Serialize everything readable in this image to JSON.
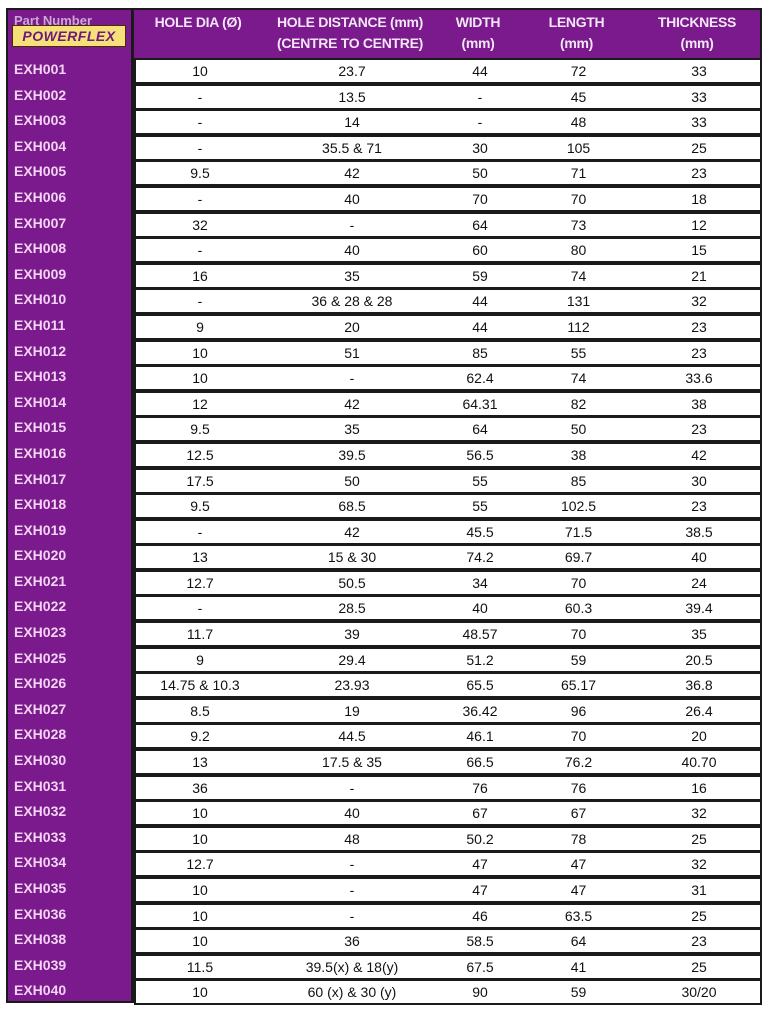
{
  "header": {
    "part_number": "Part Number",
    "brand": "POWERFLEX",
    "hole_dia": "HOLE DIA (Ø)",
    "hole_distance_1": "HOLE DISTANCE (mm)",
    "hole_distance_2": "(CENTRE TO CENTRE)",
    "width_1": "WIDTH",
    "width_2": "(mm)",
    "length_1": "LENGTH",
    "length_2": "(mm)",
    "thickness_1": "THICKNESS",
    "thickness_2": "(mm)"
  },
  "colors": {
    "header_bg": "#7a1a8c",
    "part_text": "#f4d4f4",
    "cell_bg": "#ffffff"
  },
  "rows": [
    [
      "EXH001",
      "10",
      "23.7",
      "44",
      "72",
      "33"
    ],
    [
      "EXH002",
      "-",
      "13.5",
      "-",
      "45",
      "33"
    ],
    [
      "EXH003",
      "-",
      "14",
      "-",
      "48",
      "33"
    ],
    [
      "EXH004",
      "-",
      "35.5 & 71",
      "30",
      "105",
      "25"
    ],
    [
      "EXH005",
      "9.5",
      "42",
      "50",
      "71",
      "23"
    ],
    [
      "EXH006",
      "-",
      "40",
      "70",
      "70",
      "18"
    ],
    [
      "EXH007",
      "32",
      "-",
      "64",
      "73",
      "12"
    ],
    [
      "EXH008",
      "-",
      "40",
      "60",
      "80",
      "15"
    ],
    [
      "EXH009",
      "16",
      "35",
      "59",
      "74",
      "21"
    ],
    [
      "EXH010",
      "-",
      "36 & 28 & 28",
      "44",
      "131",
      "32"
    ],
    [
      "EXH011",
      "9",
      "20",
      "44",
      "112",
      "23"
    ],
    [
      "EXH012",
      "10",
      "51",
      "85",
      "55",
      "23"
    ],
    [
      "EXH013",
      "10",
      "-",
      "62.4",
      "74",
      "33.6"
    ],
    [
      "EXH014",
      "12",
      "42",
      "64.31",
      "82",
      "38"
    ],
    [
      "EXH015",
      "9.5",
      "35",
      "64",
      "50",
      "23"
    ],
    [
      "EXH016",
      "12.5",
      "39.5",
      "56.5",
      "38",
      "42"
    ],
    [
      "EXH017",
      "17.5",
      "50",
      "55",
      "85",
      "30"
    ],
    [
      "EXH018",
      "9.5",
      "68.5",
      "55",
      "102.5",
      "23"
    ],
    [
      "EXH019",
      "-",
      "42",
      "45.5",
      "71.5",
      "38.5"
    ],
    [
      "EXH020",
      "13",
      "15 & 30",
      "74.2",
      "69.7",
      "40"
    ],
    [
      "EXH021",
      "12.7",
      "50.5",
      "34",
      "70",
      "24"
    ],
    [
      "EXH022",
      "-",
      "28.5",
      "40",
      "60.3",
      "39.4"
    ],
    [
      "EXH023",
      "11.7",
      "39",
      "48.57",
      "70",
      "35"
    ],
    [
      "EXH025",
      "9",
      "29.4",
      "51.2",
      "59",
      "20.5"
    ],
    [
      "EXH026",
      "14.75 & 10.3",
      "23.93",
      "65.5",
      "65.17",
      "36.8"
    ],
    [
      "EXH027",
      "8.5",
      "19",
      "36.42",
      "96",
      "26.4"
    ],
    [
      "EXH028",
      "9.2",
      "44.5",
      "46.1",
      "70",
      "20"
    ],
    [
      "EXH030",
      "13",
      "17.5 & 35",
      "66.5",
      "76.2",
      "40.70"
    ],
    [
      "EXH031",
      "36",
      "-",
      "76",
      "76",
      "16"
    ],
    [
      "EXH032",
      "10",
      "40",
      "67",
      "67",
      "32"
    ],
    [
      "EXH033",
      "10",
      "48",
      "50.2",
      "78",
      "25"
    ],
    [
      "EXH034",
      "12.7",
      "-",
      "47",
      "47",
      "32"
    ],
    [
      "EXH035",
      "10",
      "-",
      "47",
      "47",
      "31"
    ],
    [
      "EXH036",
      "10",
      "-",
      "46",
      "63.5",
      "25"
    ],
    [
      "EXH038",
      "10",
      "36",
      "58.5",
      "64",
      "23"
    ],
    [
      "EXH039",
      "11.5",
      "39.5(x) & 18(y)",
      "67.5",
      "41",
      "25"
    ],
    [
      "EXH040",
      "10",
      "60 (x) & 30 (y)",
      "90",
      "59",
      "30/20"
    ]
  ]
}
